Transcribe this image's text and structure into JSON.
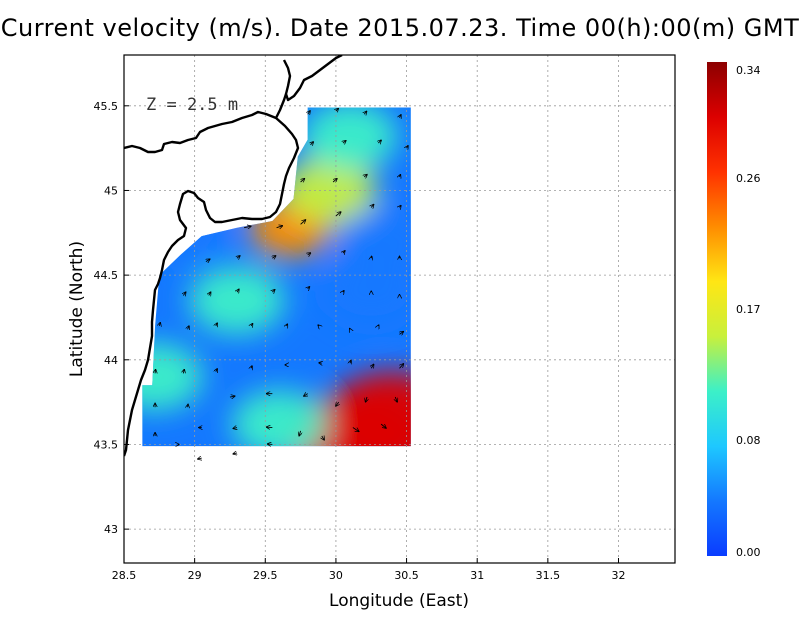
{
  "title": "Current velocity (m/s). Date 2015.07.23. Time 00(h):00(m) GMT",
  "depth_label": "Z = 2.5 m",
  "chart_data": {
    "type": "heatmap",
    "subtype": "ocean-current-vector-field",
    "xlabel": "Longitude (East)",
    "ylabel": "Latitude (North)",
    "xlim": [
      28.5,
      32.4
    ],
    "ylim": [
      42.8,
      45.8
    ],
    "x_ticks": [
      "28.5",
      "29",
      "29.5",
      "30",
      "30.5",
      "31",
      "31.5",
      "32"
    ],
    "y_ticks": [
      "43",
      "43.5",
      "44",
      "44.5",
      "45",
      "45.5"
    ],
    "grid": true,
    "data_domain": {
      "lon": [
        28.63,
        30.53
      ],
      "lat": [
        43.49,
        45.49
      ]
    },
    "colorbar": {
      "min": 0.0,
      "max": 0.34,
      "tick_labels": [
        "0.00",
        "0.08",
        "0.17",
        "0.26",
        "0.34"
      ],
      "tick_values": [
        0.0,
        0.08,
        0.17,
        0.26,
        0.34
      ],
      "colors": [
        "#0a3cff",
        "#1478ff",
        "#1ec8ff",
        "#3cf0c8",
        "#c8f03c",
        "#ffe614",
        "#ff8c00",
        "#ff3200",
        "#dc0000",
        "#8c0000"
      ]
    },
    "speed_features": [
      {
        "lon": 30.4,
        "lat": 43.65,
        "speed": 0.3
      },
      {
        "lon": 30.15,
        "lat": 43.52,
        "speed": 0.32
      },
      {
        "lon": 29.68,
        "lat": 44.78,
        "speed": 0.22
      },
      {
        "lon": 29.95,
        "lat": 45.0,
        "speed": 0.14
      },
      {
        "lon": 30.1,
        "lat": 45.32,
        "speed": 0.1
      },
      {
        "lon": 29.3,
        "lat": 44.35,
        "speed": 0.11
      },
      {
        "lon": 28.72,
        "lat": 43.9,
        "speed": 0.1
      },
      {
        "lon": 29.6,
        "lat": 43.62,
        "speed": 0.12
      },
      {
        "lon": 30.35,
        "lat": 44.7,
        "speed": 0.02
      },
      {
        "lon": 30.25,
        "lat": 44.4,
        "speed": 0.03
      },
      {
        "lon": 28.9,
        "lat": 44.8,
        "speed": 0.05
      }
    ],
    "vectors": [
      {
        "lon": 29.8,
        "lat": 45.45,
        "u": 0.05,
        "v": 0.07
      },
      {
        "lon": 30.0,
        "lat": 45.47,
        "u": 0.05,
        "v": 0.05
      },
      {
        "lon": 30.2,
        "lat": 45.45,
        "u": 0.05,
        "v": 0.06
      },
      {
        "lon": 30.45,
        "lat": 45.43,
        "u": 0.03,
        "v": 0.06
      },
      {
        "lon": 29.82,
        "lat": 45.27,
        "u": 0.06,
        "v": 0.06
      },
      {
        "lon": 30.05,
        "lat": 45.28,
        "u": 0.06,
        "v": 0.05
      },
      {
        "lon": 30.3,
        "lat": 45.28,
        "u": 0.06,
        "v": 0.06
      },
      {
        "lon": 30.5,
        "lat": 45.25,
        "u": 0.03,
        "v": 0.05
      },
      {
        "lon": 29.75,
        "lat": 45.05,
        "u": 0.08,
        "v": 0.07
      },
      {
        "lon": 29.98,
        "lat": 45.05,
        "u": 0.08,
        "v": 0.07
      },
      {
        "lon": 30.2,
        "lat": 45.08,
        "u": 0.06,
        "v": 0.05
      },
      {
        "lon": 30.45,
        "lat": 45.08,
        "u": 0.02,
        "v": 0.05
      },
      {
        "lon": 29.35,
        "lat": 44.78,
        "u": 0.14,
        "v": 0.03
      },
      {
        "lon": 29.58,
        "lat": 44.78,
        "u": 0.12,
        "v": 0.04
      },
      {
        "lon": 29.75,
        "lat": 44.8,
        "u": 0.1,
        "v": 0.09
      },
      {
        "lon": 30.0,
        "lat": 44.85,
        "u": 0.1,
        "v": 0.08
      },
      {
        "lon": 30.25,
        "lat": 44.9,
        "u": 0.05,
        "v": 0.06
      },
      {
        "lon": 30.45,
        "lat": 44.9,
        "u": 0.03,
        "v": 0.04
      },
      {
        "lon": 29.08,
        "lat": 44.58,
        "u": 0.08,
        "v": 0.05
      },
      {
        "lon": 29.3,
        "lat": 44.6,
        "u": 0.06,
        "v": 0.05
      },
      {
        "lon": 29.55,
        "lat": 44.6,
        "u": 0.07,
        "v": 0.05
      },
      {
        "lon": 29.8,
        "lat": 44.62,
        "u": 0.06,
        "v": 0.04
      },
      {
        "lon": 30.05,
        "lat": 44.63,
        "u": 0.04,
        "v": 0.05
      },
      {
        "lon": 30.25,
        "lat": 44.6,
        "u": 0.01,
        "v": 0.04
      },
      {
        "lon": 30.45,
        "lat": 44.6,
        "u": 0.0,
        "v": 0.04
      },
      {
        "lon": 28.92,
        "lat": 44.38,
        "u": 0.05,
        "v": 0.07
      },
      {
        "lon": 29.1,
        "lat": 44.38,
        "u": 0.04,
        "v": 0.07
      },
      {
        "lon": 29.3,
        "lat": 44.4,
        "u": 0.04,
        "v": 0.06
      },
      {
        "lon": 29.55,
        "lat": 44.4,
        "u": 0.05,
        "v": 0.05
      },
      {
        "lon": 29.8,
        "lat": 44.42,
        "u": 0.04,
        "v": 0.04
      },
      {
        "lon": 30.05,
        "lat": 44.4,
        "u": 0.02,
        "v": 0.03
      },
      {
        "lon": 30.25,
        "lat": 44.4,
        "u": 0.0,
        "v": 0.02
      },
      {
        "lon": 30.45,
        "lat": 44.38,
        "u": 0.0,
        "v": 0.02
      },
      {
        "lon": 28.75,
        "lat": 44.2,
        "u": 0.02,
        "v": 0.07
      },
      {
        "lon": 28.95,
        "lat": 44.18,
        "u": 0.03,
        "v": 0.07
      },
      {
        "lon": 29.15,
        "lat": 44.2,
        "u": 0.03,
        "v": 0.06
      },
      {
        "lon": 29.4,
        "lat": 44.2,
        "u": 0.03,
        "v": 0.05
      },
      {
        "lon": 29.65,
        "lat": 44.2,
        "u": 0.02,
        "v": 0.04
      },
      {
        "lon": 29.88,
        "lat": 44.2,
        "u": -0.02,
        "v": 0.02
      },
      {
        "lon": 30.1,
        "lat": 44.18,
        "u": -0.01,
        "v": 0.02
      },
      {
        "lon": 30.3,
        "lat": 44.2,
        "u": 0.01,
        "v": 0.02
      },
      {
        "lon": 30.45,
        "lat": 44.15,
        "u": 0.08,
        "v": 0.06
      },
      {
        "lon": 28.72,
        "lat": 43.92,
        "u": 0.01,
        "v": 0.08
      },
      {
        "lon": 28.92,
        "lat": 43.92,
        "u": 0.02,
        "v": 0.08
      },
      {
        "lon": 29.15,
        "lat": 43.93,
        "u": 0.03,
        "v": 0.06
      },
      {
        "lon": 29.4,
        "lat": 43.95,
        "u": 0.02,
        "v": 0.05
      },
      {
        "lon": 29.65,
        "lat": 43.97,
        "u": -0.03,
        "v": 0.0
      },
      {
        "lon": 29.9,
        "lat": 43.98,
        "u": -0.06,
        "v": 0.01
      },
      {
        "lon": 30.1,
        "lat": 43.98,
        "u": 0.02,
        "v": 0.06
      },
      {
        "lon": 30.25,
        "lat": 43.95,
        "u": 0.05,
        "v": 0.08
      },
      {
        "lon": 30.45,
        "lat": 43.95,
        "u": 0.08,
        "v": 0.09
      },
      {
        "lon": 28.72,
        "lat": 43.72,
        "u": 0.0,
        "v": 0.08
      },
      {
        "lon": 28.95,
        "lat": 43.72,
        "u": 0.01,
        "v": 0.06
      },
      {
        "lon": 29.25,
        "lat": 43.78,
        "u": 0.1,
        "v": 0.02
      },
      {
        "lon": 29.55,
        "lat": 43.8,
        "u": -0.12,
        "v": 0.0
      },
      {
        "lon": 29.8,
        "lat": 43.8,
        "u": -0.08,
        "v": -0.05
      },
      {
        "lon": 30.02,
        "lat": 43.75,
        "u": -0.06,
        "v": -0.08
      },
      {
        "lon": 30.22,
        "lat": 43.78,
        "u": -0.03,
        "v": -0.1
      },
      {
        "lon": 30.42,
        "lat": 43.78,
        "u": 0.04,
        "v": -0.1
      },
      {
        "lon": 28.72,
        "lat": 43.55,
        "u": 0.0,
        "v": 0.07
      },
      {
        "lon": 29.05,
        "lat": 43.6,
        "u": -0.06,
        "v": 0.0
      },
      {
        "lon": 29.3,
        "lat": 43.6,
        "u": -0.08,
        "v": -0.02
      },
      {
        "lon": 29.55,
        "lat": 43.6,
        "u": -0.12,
        "v": 0.01
      },
      {
        "lon": 29.75,
        "lat": 43.58,
        "u": -0.03,
        "v": -0.1
      },
      {
        "lon": 29.9,
        "lat": 43.55,
        "u": 0.05,
        "v": -0.08
      },
      {
        "lon": 30.12,
        "lat": 43.6,
        "u": 0.12,
        "v": -0.08
      },
      {
        "lon": 30.32,
        "lat": 43.62,
        "u": 0.1,
        "v": -0.08
      },
      {
        "lon": 28.88,
        "lat": 43.5,
        "u": 0.03,
        "v": 0.0
      },
      {
        "lon": 29.05,
        "lat": 43.42,
        "u": -0.08,
        "v": -0.02
      },
      {
        "lon": 29.3,
        "lat": 43.45,
        "u": -0.08,
        "v": -0.02
      },
      {
        "lon": 29.55,
        "lat": 43.5,
        "u": -0.1,
        "v": 0.01
      }
    ]
  }
}
